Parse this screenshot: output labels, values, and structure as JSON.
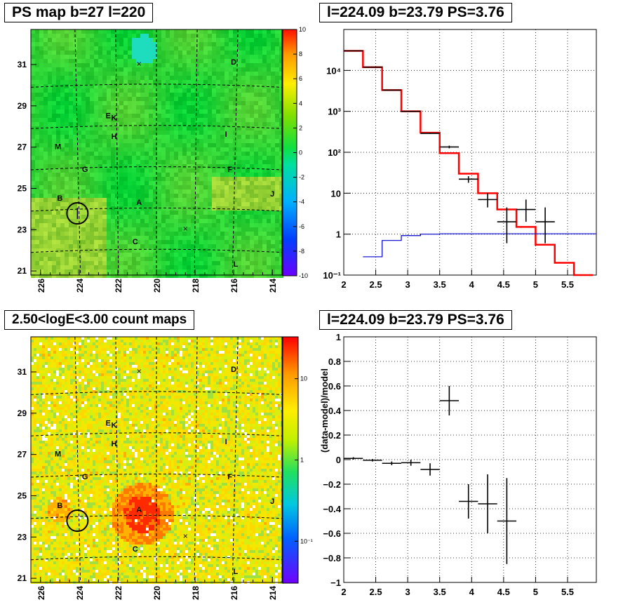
{
  "panels": {
    "ps_map": {
      "title": "PS map b=27 l=220",
      "x_ticks": [
        "226",
        "224",
        "222",
        "220",
        "218",
        "216",
        "214"
      ],
      "y_ticks": [
        "31",
        "29",
        "27",
        "25",
        "23",
        "21"
      ],
      "colorbar_ticks": [
        "10",
        "8",
        "6",
        "4",
        "2",
        "0",
        "-2",
        "-4",
        "-6",
        "-8",
        "-10"
      ],
      "sources": [
        {
          "label": "D"
        },
        {
          "label": "E"
        },
        {
          "label": "K"
        },
        {
          "label": "H"
        },
        {
          "label": "I"
        },
        {
          "label": "M"
        },
        {
          "label": "G"
        },
        {
          "label": "F"
        },
        {
          "label": "B"
        },
        {
          "label": "A"
        },
        {
          "label": "J"
        },
        {
          "label": "C"
        },
        {
          "label": "L"
        }
      ]
    },
    "count_map": {
      "title": "2.50<logE<3.00 count maps",
      "x_ticks": [
        "226",
        "224",
        "222",
        "220",
        "218",
        "216",
        "214"
      ],
      "y_ticks": [
        "31",
        "29",
        "27",
        "25",
        "23",
        "21"
      ],
      "colorbar_ticks": [
        "10",
        "1",
        "10⁻¹"
      ],
      "sources": [
        {
          "label": "D"
        },
        {
          "label": "E"
        },
        {
          "label": "K"
        },
        {
          "label": "H"
        },
        {
          "label": "I"
        },
        {
          "label": "M"
        },
        {
          "label": "G"
        },
        {
          "label": "F"
        },
        {
          "label": "B"
        },
        {
          "label": "A"
        },
        {
          "label": "J"
        },
        {
          "label": "C"
        },
        {
          "label": "L"
        }
      ]
    },
    "spectrum": {
      "title": "l=224.09 b=23.79 PS=3.76"
    },
    "residual": {
      "title": "l=224.09 b=23.79 PS=3.76"
    }
  },
  "chart_data": [
    {
      "type": "heatmap",
      "title": "PS map b=27 l=220",
      "xlim": [
        226.5,
        213.5
      ],
      "ylim": [
        20.8,
        32.7
      ],
      "x_ticks": [
        226,
        224,
        222,
        220,
        218,
        216,
        214
      ],
      "y_ticks": [
        31,
        29,
        27,
        25,
        23,
        21
      ],
      "colorbar": {
        "min": -10,
        "max": 10,
        "ticks": [
          10,
          8,
          6,
          4,
          2,
          0,
          -2,
          -4,
          -6,
          -8,
          -10
        ]
      },
      "sources": [
        {
          "label": "D",
          "l": 216.0,
          "b": 31.0
        },
        {
          "label": "E",
          "l": 222.5,
          "b": 28.4
        },
        {
          "label": "K",
          "l": 222.2,
          "b": 28.3
        },
        {
          "label": "H",
          "l": 222.2,
          "b": 27.4
        },
        {
          "label": "I",
          "l": 216.4,
          "b": 27.5
        },
        {
          "label": "M",
          "l": 225.1,
          "b": 26.9
        },
        {
          "label": "G",
          "l": 223.7,
          "b": 25.8
        },
        {
          "label": "F",
          "l": 216.2,
          "b": 25.8
        },
        {
          "label": "B",
          "l": 225.0,
          "b": 24.4
        },
        {
          "label": "A",
          "l": 220.9,
          "b": 24.2
        },
        {
          "label": "J",
          "l": 214.0,
          "b": 24.6
        },
        {
          "label": "C",
          "l": 221.1,
          "b": 22.3
        },
        {
          "label": "L",
          "l": 215.9,
          "b": 21.2
        }
      ],
      "marked_position": {
        "l": 224.09,
        "b": 23.79
      }
    },
    {
      "type": "heatmap",
      "title": "2.50<logE<3.00 count maps",
      "xlim": [
        226.5,
        213.5
      ],
      "ylim": [
        20.8,
        32.7
      ],
      "x_ticks": [
        226,
        224,
        222,
        220,
        218,
        216,
        214
      ],
      "y_ticks": [
        31,
        29,
        27,
        25,
        23,
        21
      ],
      "colorbar": {
        "scale": "log",
        "ticks": [
          "10",
          "1",
          "10⁻¹"
        ]
      },
      "marked_position": {
        "l": 224.09,
        "b": 23.79
      }
    },
    {
      "type": "line",
      "title": "l=224.09 b=23.79 PS=3.76",
      "xlim": [
        2.0,
        5.95
      ],
      "ylim": [
        0.1,
        100000
      ],
      "yscale": "log",
      "x_ticks": [
        2,
        2.5,
        3,
        3.5,
        4,
        4.5,
        5,
        5.5
      ],
      "y_ticks": [
        {
          "value": 0.1,
          "label": "10⁻¹"
        },
        {
          "value": 1,
          "label": "1"
        },
        {
          "value": 10,
          "label": "10"
        },
        {
          "value": 100,
          "label": "10²"
        },
        {
          "value": 1000,
          "label": "10³"
        },
        {
          "value": 10000,
          "label": "10⁴"
        }
      ],
      "grid": true,
      "series": [
        {
          "name": "",
          "color": "#ff0000",
          "kind": "step",
          "edges": [
            2.0,
            2.3,
            2.6,
            2.9,
            3.2,
            3.5,
            3.8,
            4.1,
            4.4,
            4.7,
            5.0,
            5.3,
            5.6,
            5.9
          ],
          "values": [
            30000,
            12000,
            3300,
            1000,
            300,
            95,
            30,
            10,
            4,
            1.5,
            0.55,
            0.2,
            0.07
          ]
        },
        {
          "name": "",
          "color": "#0000cc",
          "kind": "step",
          "edges": [
            2.3,
            2.6,
            2.9,
            3.2,
            3.5,
            5.95
          ],
          "values": [
            0.28,
            0.7,
            0.92,
            1.0,
            1.02
          ]
        },
        {
          "name": "",
          "color": "#000000",
          "kind": "errorbar",
          "points": [
            {
              "x": 2.15,
              "xerr": 0.15,
              "y": 30000,
              "ylo": 30000,
              "yhi": 30000
            },
            {
              "x": 2.45,
              "xerr": 0.15,
              "y": 12000,
              "ylo": 12000,
              "yhi": 12000
            },
            {
              "x": 2.75,
              "xerr": 0.15,
              "y": 3300,
              "ylo": 3300,
              "yhi": 3300
            },
            {
              "x": 3.05,
              "xerr": 0.15,
              "y": 1000,
              "ylo": 1000,
              "yhi": 1000
            },
            {
              "x": 3.35,
              "xerr": 0.15,
              "y": 290,
              "ylo": 280,
              "yhi": 300
            },
            {
              "x": 3.65,
              "xerr": 0.15,
              "y": 135,
              "ylo": 125,
              "yhi": 145
            },
            {
              "x": 3.95,
              "xerr": 0.15,
              "y": 22,
              "ylo": 18,
              "yhi": 26
            },
            {
              "x": 4.25,
              "xerr": 0.15,
              "y": 7,
              "ylo": 4.5,
              "yhi": 10
            },
            {
              "x": 4.55,
              "xerr": 0.15,
              "y": 2.0,
              "ylo": 0.6,
              "yhi": 4.5
            },
            {
              "x": 4.85,
              "xerr": 0.15,
              "y": 4.0,
              "ylo": 2.0,
              "yhi": 7.0
            },
            {
              "x": 5.15,
              "xerr": 0.15,
              "y": 2.0,
              "ylo": 0.6,
              "yhi": 4.5
            }
          ]
        }
      ]
    },
    {
      "type": "scatter",
      "title": "l=224.09 b=23.79 PS=3.76",
      "ylabel": "(data-model)/model",
      "xlim": [
        2.0,
        5.95
      ],
      "ylim": [
        -1.0,
        1.0
      ],
      "x_ticks": [
        2,
        2.5,
        3,
        3.5,
        4,
        4.5,
        5,
        5.5
      ],
      "y_ticks": [
        -1,
        -0.8,
        -0.6,
        -0.4,
        -0.2,
        0,
        0.2,
        0.4,
        0.6,
        0.8,
        1
      ],
      "grid": true,
      "points": [
        {
          "x": 2.15,
          "xerr": 0.15,
          "y": 0.01,
          "yerr": 0.01
        },
        {
          "x": 2.45,
          "xerr": 0.15,
          "y": -0.005,
          "yerr": 0.01
        },
        {
          "x": 2.75,
          "xerr": 0.15,
          "y": -0.03,
          "yerr": 0.015
        },
        {
          "x": 3.05,
          "xerr": 0.15,
          "y": -0.025,
          "yerr": 0.025
        },
        {
          "x": 3.35,
          "xerr": 0.15,
          "y": -0.08,
          "yerr": 0.05
        },
        {
          "x": 3.65,
          "xerr": 0.15,
          "y": 0.48,
          "yerr": 0.12
        },
        {
          "x": 3.95,
          "xerr": 0.15,
          "y": -0.34,
          "yerr": 0.14
        },
        {
          "x": 4.25,
          "xerr": 0.15,
          "y": -0.36,
          "yerr": 0.24
        },
        {
          "x": 4.55,
          "xerr": 0.15,
          "y": -0.5,
          "yerr": 0.35
        }
      ]
    }
  ]
}
